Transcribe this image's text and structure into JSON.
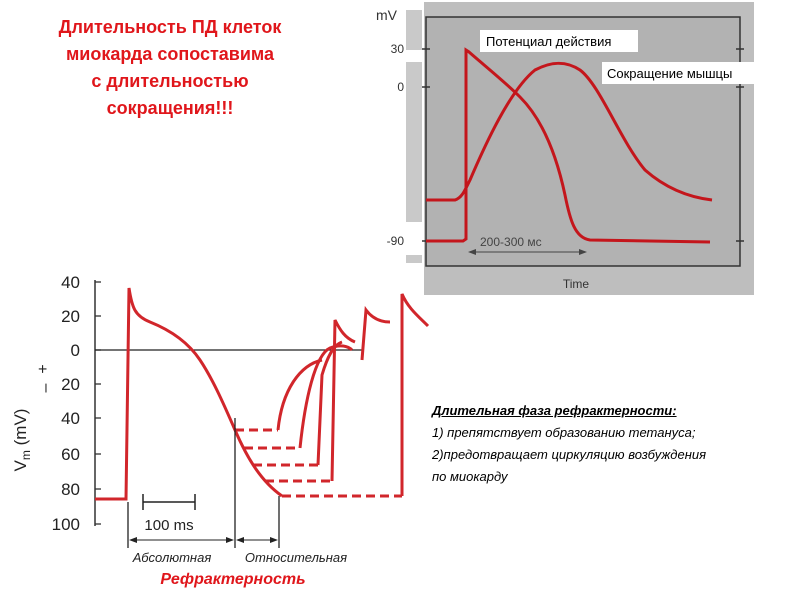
{
  "headline": {
    "line1": "Длительность ПД клеток",
    "line2": "миокарда  сопоставима",
    "line3": "с длительностью",
    "line4": "сокращения!!!"
  },
  "top_chart": {
    "ylabel": "mV",
    "yticks": [
      "30",
      "0",
      "-90"
    ],
    "legend_ap": "Потенциал действия",
    "legend_contraction": "Сокращение мышцы",
    "duration_label": "200-300 мс",
    "xlabel": "Time",
    "colors": {
      "panel": "#bebebe",
      "curve": "#c4161c",
      "axis": "#333333"
    }
  },
  "bottom_chart": {
    "ylabel_main": "V",
    "ylabel_sub": "m",
    "ylabel_unit": " (mV)",
    "sign_plus": "+",
    "sign_minus": "–",
    "yticks": [
      "40",
      "20",
      "0",
      "20",
      "40",
      "60",
      "80",
      "100"
    ],
    "scale_label": "100 ms",
    "absolute_label": "Абсолютная",
    "relative_label": "Относительная",
    "refractory_label": "Рефрактерность",
    "colors": {
      "curve": "#d1262b",
      "label_red": "#e0161b"
    }
  },
  "notes": {
    "title": "Длительная фаза рефрактерности:",
    "item1": "1) препятствует образованию тетануса;",
    "item2": "2)предотвращает циркуляцию возбуждения",
    "item3": "по миокарду"
  }
}
